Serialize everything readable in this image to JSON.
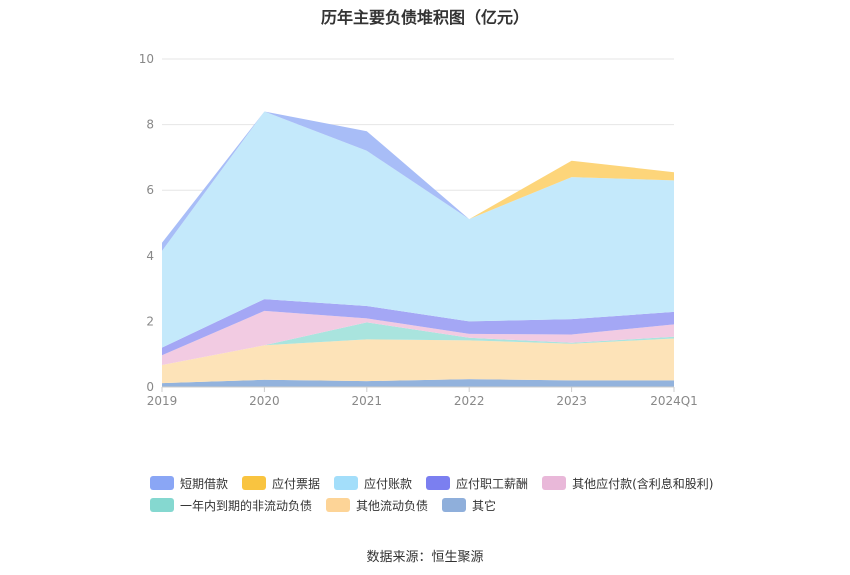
{
  "chart_data": {
    "type": "area",
    "stacked": true,
    "title": "历年主要负债堆积图（亿元）",
    "categories": [
      "2019",
      "2020",
      "2021",
      "2022",
      "2023",
      "2024Q1"
    ],
    "ylim": [
      0,
      10
    ],
    "yticks": [
      0,
      2,
      4,
      6,
      8,
      10
    ],
    "grid": true,
    "legend_position": "bottom",
    "series": [
      {
        "name": "其它",
        "color": "#93b3dd",
        "values": [
          0.12,
          0.22,
          0.18,
          0.24,
          0.2,
          0.2
        ]
      },
      {
        "name": "其他流动负债",
        "color": "#fde3b8",
        "values": [
          0.55,
          1.05,
          1.27,
          1.18,
          1.12,
          1.28
        ]
      },
      {
        "name": "一年内到期的非流动负债",
        "color": "#a9e4de",
        "values": [
          0.0,
          0.0,
          0.52,
          0.08,
          0.03,
          0.05
        ]
      },
      {
        "name": "其他应付款(含利息和股利)",
        "color": "#f2cbe2",
        "values": [
          0.3,
          1.05,
          0.12,
          0.12,
          0.25,
          0.38
        ]
      },
      {
        "name": "应付职工薪酬",
        "color": "#a4a7f5",
        "values": [
          0.23,
          0.36,
          0.38,
          0.38,
          0.47,
          0.38
        ]
      },
      {
        "name": "应付账款",
        "color": "#c4e9fb",
        "values": [
          2.95,
          5.72,
          4.73,
          3.12,
          4.33,
          4.01
        ]
      },
      {
        "name": "应付票据",
        "color": "#fdd57a",
        "values": [
          0.0,
          0.0,
          0.0,
          0.0,
          0.5,
          0.25
        ]
      },
      {
        "name": "短期借款",
        "color": "#a8bdf7",
        "values": [
          0.25,
          0.0,
          0.6,
          0.0,
          0.0,
          0.0
        ]
      }
    ],
    "legend_order": [
      "短期借款",
      "应付票据",
      "应付账款",
      "应付职工薪酬",
      "其他应付款(含利息和股利)",
      "一年内到期的非流动负债",
      "其他流动负债",
      "其它"
    ],
    "legend_colors": {
      "短期借款": "#8aa6f5",
      "应付票据": "#f9c440",
      "应付账款": "#a3defa",
      "应付职工薪酬": "#7b7ff0",
      "其他应付款(含利息和股利)": "#e9b8d9",
      "一年内到期的非流动负债": "#85d8d0",
      "其他流动负债": "#fdd497",
      "其它": "#8fafdb"
    }
  },
  "source_label": "数据来源：恒生聚源"
}
